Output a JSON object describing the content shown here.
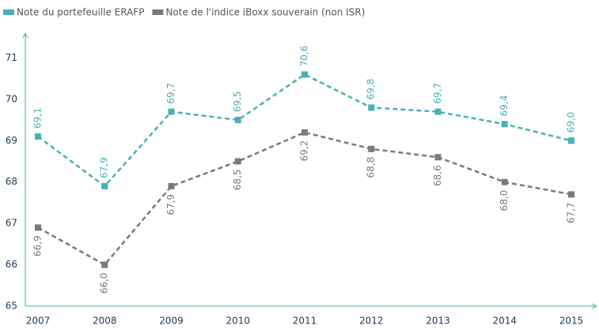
{
  "chart_data": {
    "type": "line",
    "categories": [
      "2007",
      "2008",
      "2009",
      "2010",
      "2011",
      "2012",
      "2013",
      "2014",
      "2015"
    ],
    "series": [
      {
        "name": "Note du portefeuille ERAFP",
        "color": "#4bb0b5",
        "values": [
          69.1,
          67.9,
          69.7,
          69.5,
          70.6,
          69.8,
          69.7,
          69.4,
          69.0
        ],
        "value_labels": [
          "69,1",
          "67,9",
          "69,7",
          "69,5",
          "70,6",
          "69,8",
          "69,7",
          "69,4",
          "69,0"
        ]
      },
      {
        "name": "Note de l'indice iBoxx souverain (non ISR)",
        "color": "#7a7a7a",
        "values": [
          66.9,
          66.0,
          67.9,
          68.5,
          69.2,
          68.8,
          68.6,
          68.0,
          67.7
        ],
        "value_labels": [
          "66,9",
          "66,0",
          "67,9",
          "68,5",
          "69,2",
          "68,8",
          "68,6",
          "68,0",
          "67,7"
        ]
      }
    ],
    "ylim": [
      65,
      71.6
    ],
    "yticks": [
      65,
      66,
      67,
      68,
      69,
      70,
      71
    ],
    "legend": "top-left"
  }
}
